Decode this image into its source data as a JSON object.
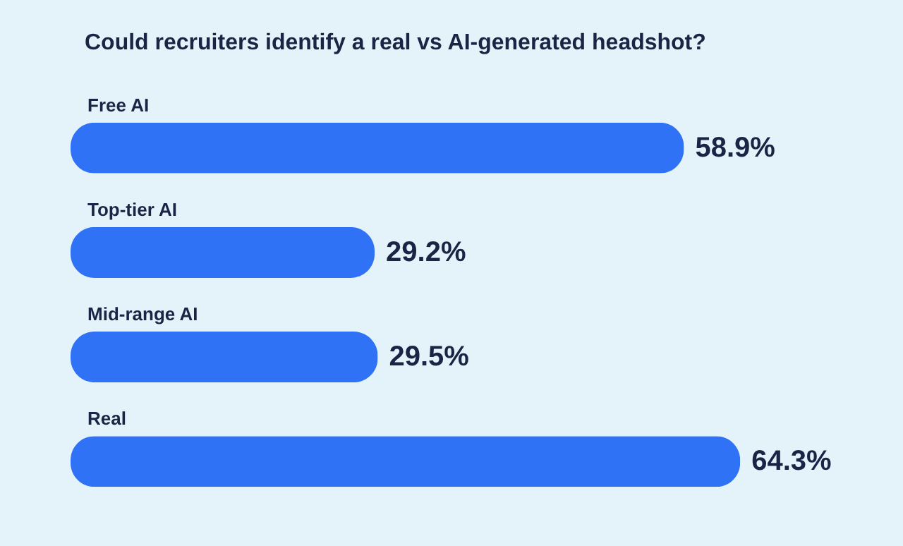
{
  "chart_data": {
    "type": "bar",
    "orientation": "horizontal",
    "title": "Could recruiters identify a real vs AI-generated headshot?",
    "categories": [
      "Free AI",
      "Top-tier AI",
      "Mid-range AI",
      "Real"
    ],
    "values": [
      58.9,
      29.2,
      29.5,
      64.3
    ],
    "value_labels": [
      "58.9%",
      "29.2%",
      "29.5%",
      "64.3%"
    ],
    "color": "#2f72f5"
  }
}
